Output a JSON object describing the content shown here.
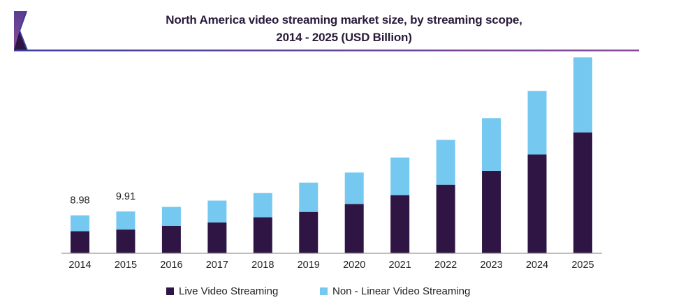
{
  "chart_data": {
    "type": "bar",
    "stacked": true,
    "title": "North America video streaming market size, by streaming scope, 2014 - 2025 (USD Billion)",
    "title_lines": [
      "North America video streaming market size, by streaming scope,",
      "2014 - 2025 (USD Billion)"
    ],
    "xlabel": "",
    "ylabel": "",
    "ylim": [
      0,
      50
    ],
    "grid": false,
    "legend_position": "bottom",
    "categories": [
      "2014",
      "2015",
      "2016",
      "2017",
      "2018",
      "2019",
      "2020",
      "2021",
      "2022",
      "2023",
      "2024",
      "2025"
    ],
    "series": [
      {
        "name": "Live Video Streaming",
        "color": "#2e1544",
        "values": [
          5.2,
          5.6,
          6.45,
          7.3,
          8.5,
          9.8,
          11.7,
          13.8,
          16.3,
          19.6,
          23.5,
          28.8
        ]
      },
      {
        "name": "Non - Linear Video Streaming",
        "color": "#75c8f0",
        "values": [
          3.78,
          4.31,
          4.55,
          5.2,
          5.8,
          7.0,
          7.5,
          9.0,
          10.7,
          12.6,
          15.2,
          17.9
        ]
      }
    ],
    "data_labels": [
      {
        "category": "2014",
        "text": "8.98"
      },
      {
        "category": "2015",
        "text": "9.91"
      }
    ]
  },
  "colors": {
    "accent_line": "#4b3a8c",
    "logo_purple": "#6a3d8f",
    "logo_dark": "#2e1544",
    "axis": "#999999"
  }
}
